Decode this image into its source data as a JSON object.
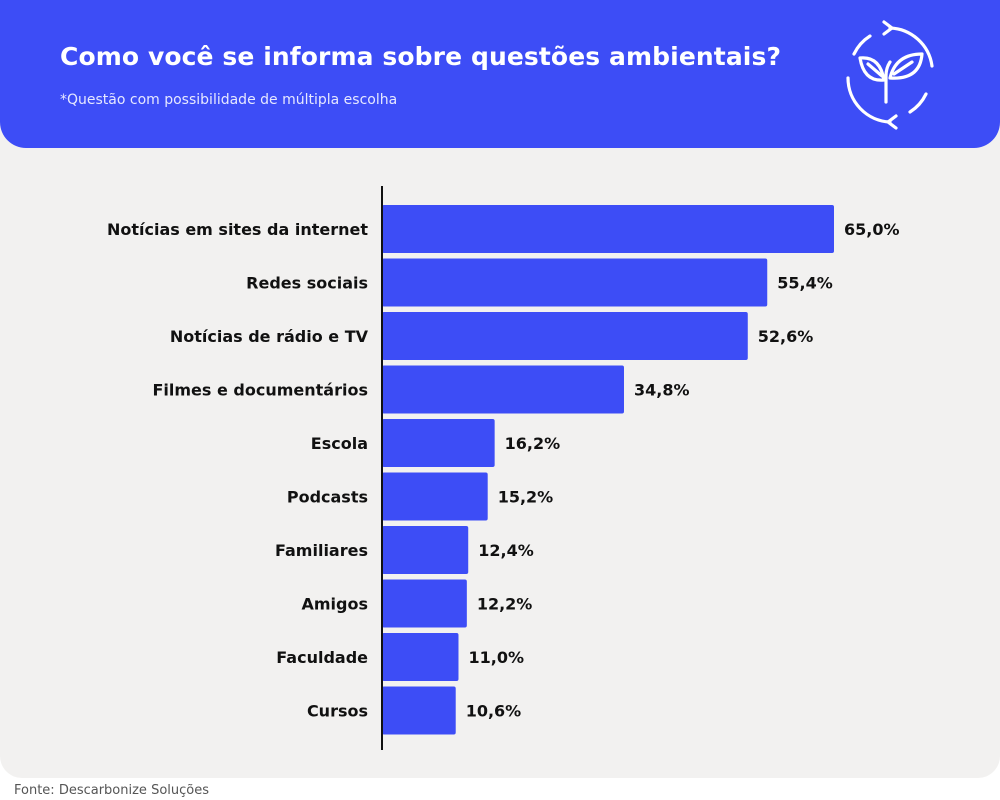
{
  "header": {
    "title": "Como você se informa sobre questões ambientais?",
    "subtitle": "*Questão com possibilidade de múltipla escolha",
    "icon": "recycle-leaf-icon"
  },
  "source": "Fonte: Descarbonize Soluções",
  "colors": {
    "header_bg": "#3d4df6",
    "bar": "#3d4df6",
    "panel_bg": "#f2f1f0"
  },
  "chart_data": {
    "type": "bar",
    "orientation": "horizontal",
    "title": "Como você se informa sobre questões ambientais?",
    "categories": [
      "Notícias em sites da internet",
      "Redes sociais",
      "Notícias de rádio e TV",
      "Filmes e documentários",
      "Escola",
      "Podcasts",
      "Familiares",
      "Amigos",
      "Faculdade",
      "Cursos"
    ],
    "values": [
      65.0,
      55.4,
      52.6,
      34.8,
      16.2,
      15.2,
      12.4,
      12.2,
      11.0,
      10.6
    ],
    "value_labels": [
      "65,0%",
      "55,4%",
      "52,6%",
      "34,8%",
      "16,2%",
      "15,2%",
      "12,4%",
      "12,2%",
      "11,0%",
      "10,6%"
    ],
    "unit": "%",
    "xlim": [
      0,
      65
    ],
    "grid": false,
    "legend": "none"
  }
}
